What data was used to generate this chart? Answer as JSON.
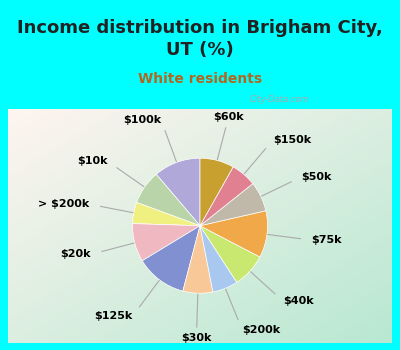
{
  "title": "Income distribution in Brigham City,\nUT (%)",
  "subtitle": "White residents",
  "background_cyan": "#00FFFF",
  "background_chart_left": "#b8e8d0",
  "background_chart_right": "#e8f4f0",
  "labels": [
    "$100k",
    "$10k",
    "> $200k",
    "$20k",
    "$125k",
    "$30k",
    "$200k",
    "$40k",
    "$75k",
    "$50k",
    "$150k",
    "$60k"
  ],
  "values": [
    11,
    8,
    5,
    9,
    12,
    7,
    6,
    8,
    11,
    7,
    6,
    8
  ],
  "colors": [
    "#b0a8d8",
    "#b8d4a8",
    "#f0f080",
    "#f0b8c0",
    "#8090d0",
    "#f8c898",
    "#a8c8f0",
    "#c8e870",
    "#f0a848",
    "#c0b8a8",
    "#e08090",
    "#c8a030"
  ],
  "startangle": 90,
  "title_fontsize": 13,
  "subtitle_fontsize": 10,
  "label_fontsize": 8,
  "figsize": [
    4.0,
    3.5
  ],
  "dpi": 100
}
